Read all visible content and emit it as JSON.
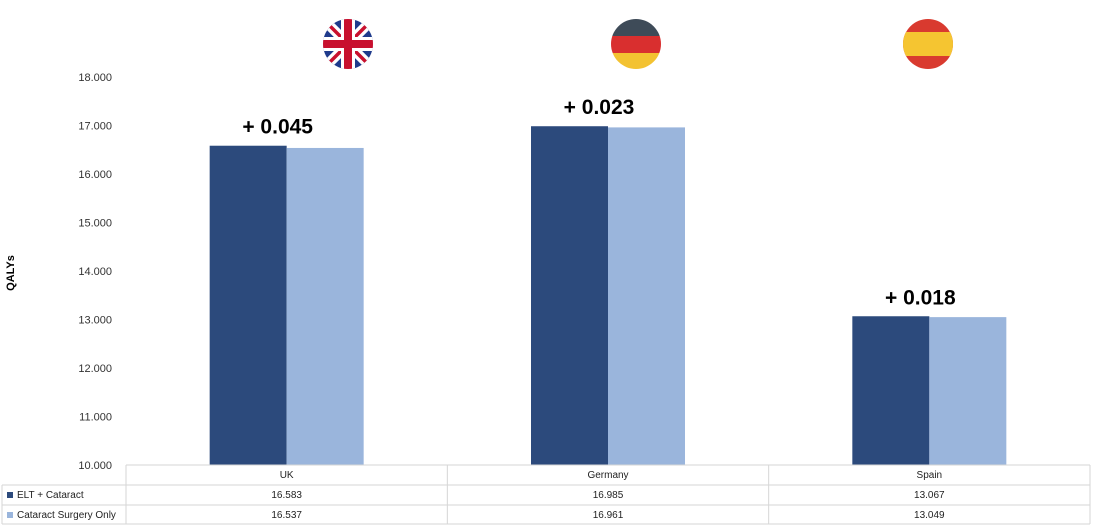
{
  "chart_data": {
    "type": "bar",
    "categories": [
      "UK",
      "Germany",
      "Spain"
    ],
    "series": [
      {
        "name": "ELT + Cataract",
        "color": "#2c4a7c",
        "values": [
          16.583,
          16.985,
          13.067
        ],
        "labels": [
          "16.583",
          "16.985",
          "13.067"
        ]
      },
      {
        "name": "Cataract Surgery Only",
        "color": "#9ab5dc",
        "values": [
          16.537,
          16.961,
          13.049
        ],
        "labels": [
          "16.537",
          "16.961",
          "13.049"
        ]
      }
    ],
    "annotations": [
      "+ 0.045",
      "+ 0.023",
      "+ 0.018"
    ],
    "ylabel": "QALYs",
    "ylim": [
      10,
      18
    ],
    "yticks": [
      "10.000",
      "11.000",
      "12.000",
      "13.000",
      "14.000",
      "15.000",
      "16.000",
      "17.000",
      "18.000"
    ],
    "grid": false,
    "legend": "data-table",
    "flag_icons": [
      "uk-flag-icon",
      "germany-flag-icon",
      "spain-flag-icon"
    ]
  }
}
